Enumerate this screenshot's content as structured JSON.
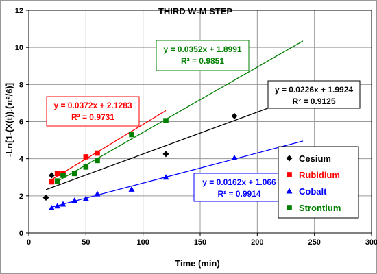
{
  "chart_data": {
    "type": "scatter",
    "title": "THIRD W-M STEP",
    "xlabel": "Time (min)",
    "ylabel": "-Ln[1-(X(t)).(π²/6)]",
    "xlim": [
      0,
      300
    ],
    "ylim": [
      0,
      12
    ],
    "xticks": [
      "0",
      "50",
      "100",
      "150",
      "200",
      "250",
      "300"
    ],
    "yticks": [
      "0",
      "2",
      "4",
      "6",
      "8",
      "10",
      "12"
    ],
    "grid": true,
    "legend_position": "bottom-right",
    "series": [
      {
        "name": "Cesium",
        "color": "#000000",
        "marker": "diamond",
        "x": [
          15,
          20,
          120,
          180
        ],
        "y": [
          1.9,
          3.1,
          4.25,
          6.3
        ],
        "fit": {
          "slope": 0.0226,
          "intercept": 1.9924,
          "x_range": [
            15,
            240
          ]
        },
        "equation": "y = 0.0226x + 1.9924",
        "r2": "R² = 0.9125"
      },
      {
        "name": "Rubidium",
        "color": "#ff0000",
        "marker": "square",
        "x": [
          20,
          25,
          30,
          50,
          60
        ],
        "y": [
          2.75,
          3.2,
          3.2,
          4.1,
          4.3
        ],
        "fit": {
          "slope": 0.0372,
          "intercept": 2.1283,
          "x_range": [
            20,
            120
          ]
        },
        "equation": "y = 0.0372x + 2.1283",
        "r2": "R² = 0.9731"
      },
      {
        "name": "Cobalt",
        "color": "#0000ff",
        "marker": "triangle",
        "x": [
          20,
          25,
          30,
          40,
          50,
          60,
          90,
          120,
          180
        ],
        "y": [
          1.35,
          1.45,
          1.55,
          1.75,
          1.85,
          2.1,
          2.35,
          3.0,
          4.05
        ],
        "fit": {
          "slope": 0.0162,
          "intercept": 1.066,
          "x_range": [
            20,
            240
          ]
        },
        "equation": "y = 0.0162x + 1.066",
        "r2": "R² = 0.9914"
      },
      {
        "name": "Strontium",
        "color": "#008000",
        "marker": "square",
        "x": [
          25,
          30,
          40,
          50,
          60,
          90,
          120
        ],
        "y": [
          2.8,
          3.1,
          3.2,
          3.55,
          3.9,
          5.3,
          6.05
        ],
        "fit": {
          "slope": 0.0352,
          "intercept": 1.8991,
          "x_range": [
            25,
            240
          ]
        },
        "equation": "y = 0.0352x + 1.8991",
        "r2": "R² = 0.9851"
      }
    ]
  }
}
